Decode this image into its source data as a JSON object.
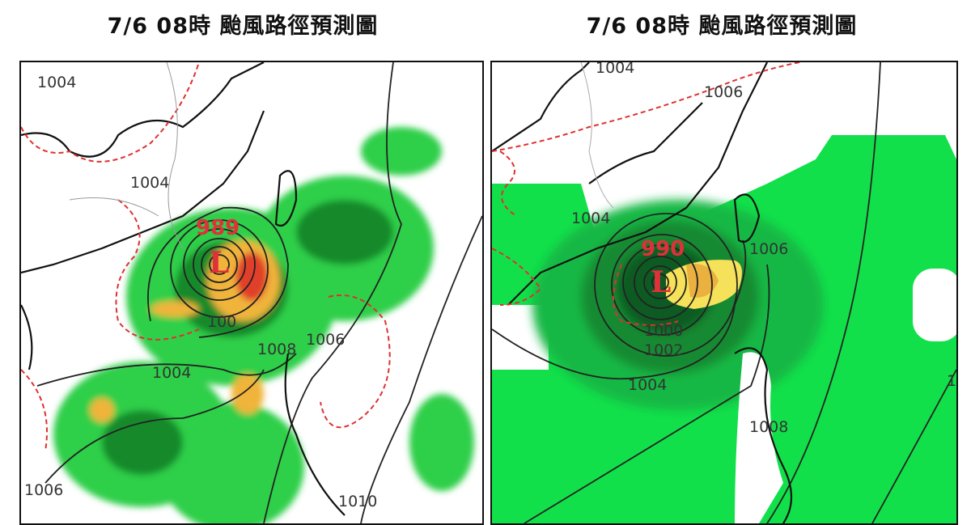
{
  "panels": [
    {
      "title": "7/6 08時 颱風路徑預測圖",
      "center_pressure": "989",
      "low_marker": "L",
      "isobar_labels": [
        "1004",
        "1004",
        "100",
        "1008",
        "1006",
        "1004",
        "1006",
        "1010"
      ]
    },
    {
      "title": "7/6 08時 颱風路徑預測圖",
      "center_pressure": "990",
      "low_marker": "L",
      "isobar_labels": [
        "1004",
        "1006",
        "1004",
        "1006",
        "1000",
        "1002",
        "1004",
        "1008",
        "1"
      ]
    }
  ],
  "colors": {
    "rain_light": "#22dd44",
    "rain_dark": "#1a8a30",
    "rain_heavy": "#f5c040",
    "rain_extreme": "#e8402a",
    "low_marker": "#e0303a",
    "dashed_contour": "#e03030"
  }
}
